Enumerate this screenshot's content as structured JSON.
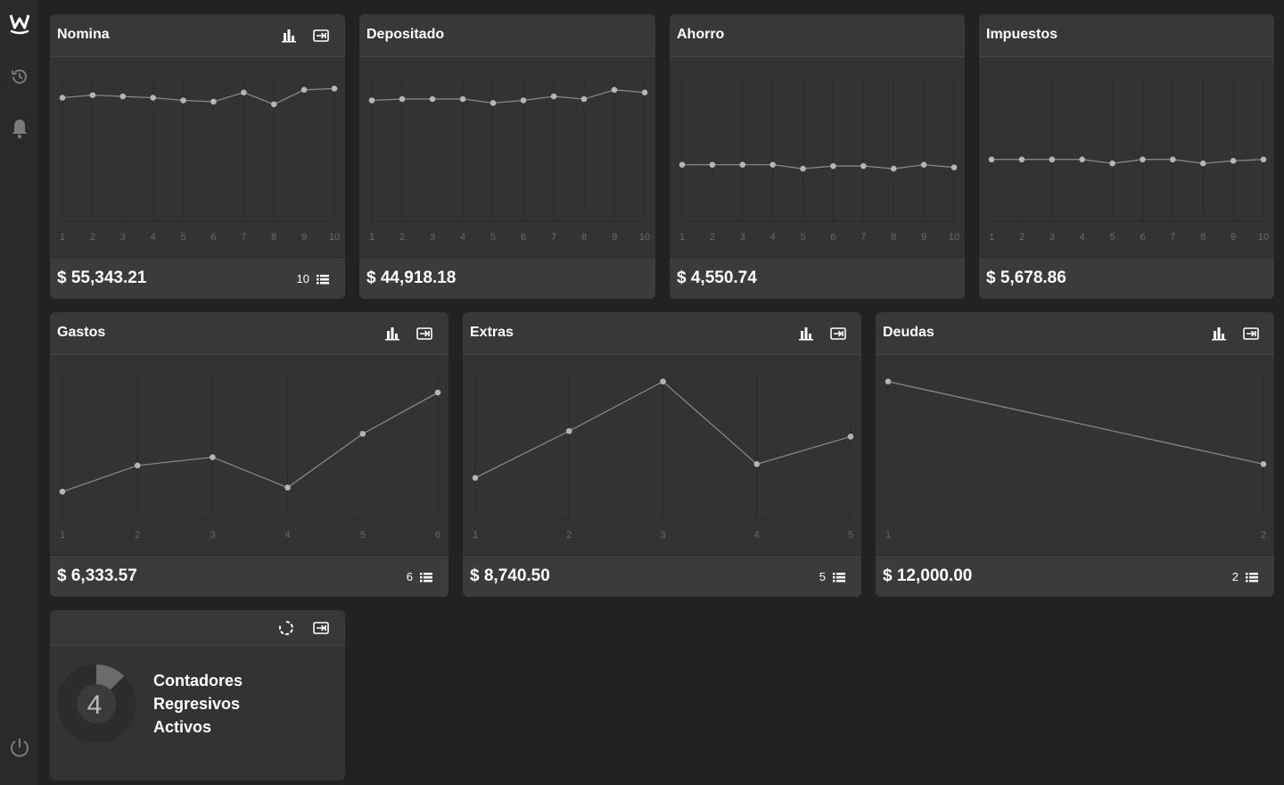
{
  "sidebar": {
    "logo_icon": "w-logo-icon",
    "items": [
      {
        "name": "history-icon"
      },
      {
        "name": "bell-icon"
      }
    ],
    "power_icon": "power-icon"
  },
  "cards": [
    {
      "id": "nomina",
      "title": "Nomina",
      "amount": "$ 55,343.21",
      "count": "10",
      "icons": [
        "bar-chart-icon",
        "export-icon"
      ],
      "list_icon": "list-icon"
    },
    {
      "id": "depositado",
      "title": "Depositado",
      "amount": "$ 44,918.18",
      "count": "",
      "icons": [],
      "list_icon": ""
    },
    {
      "id": "ahorro",
      "title": "Ahorro",
      "amount": "$ 4,550.74",
      "count": "",
      "icons": [],
      "list_icon": ""
    },
    {
      "id": "impuestos",
      "title": "Impuestos",
      "amount": "$ 5,678.86",
      "count": "",
      "icons": [],
      "list_icon": ""
    },
    {
      "id": "gastos",
      "title": "Gastos",
      "amount": "$ 6,333.57",
      "count": "6",
      "icons": [
        "bar-chart-icon",
        "export-icon"
      ],
      "list_icon": "list-icon"
    },
    {
      "id": "extras",
      "title": "Extras",
      "amount": "$ 8,740.50",
      "count": "5",
      "icons": [
        "bar-chart-icon",
        "export-icon"
      ],
      "list_icon": "list-icon"
    },
    {
      "id": "deudas",
      "title": "Deudas",
      "amount": "$ 12,000.00",
      "count": "2",
      "icons": [
        "bar-chart-icon",
        "export-icon"
      ],
      "list_icon": "list-icon"
    }
  ],
  "countdown": {
    "number": "4",
    "line1": "Contadores",
    "line2": "Regresivos",
    "line3": "Activos",
    "fraction": 0.125,
    "icons": [
      "refresh-icon",
      "export-icon"
    ]
  },
  "chart_data": [
    {
      "type": "line",
      "chart": "nomina",
      "x": [
        1,
        2,
        3,
        4,
        5,
        6,
        7,
        8,
        9,
        10
      ],
      "values": [
        0.94,
        0.96,
        0.95,
        0.94,
        0.92,
        0.91,
        0.98,
        0.89,
        1.0,
        1.01
      ],
      "ylim": [
        0,
        1.1
      ]
    },
    {
      "type": "line",
      "chart": "depositado",
      "x": [
        1,
        2,
        3,
        4,
        5,
        6,
        7,
        8,
        9,
        10
      ],
      "values": [
        0.92,
        0.93,
        0.93,
        0.93,
        0.9,
        0.92,
        0.95,
        0.93,
        1.0,
        0.98
      ],
      "ylim": [
        0,
        1.1
      ]
    },
    {
      "type": "line",
      "chart": "ahorro",
      "x": [
        1,
        2,
        3,
        4,
        5,
        6,
        7,
        8,
        9,
        10
      ],
      "values": [
        0.43,
        0.43,
        0.43,
        0.43,
        0.4,
        0.42,
        0.42,
        0.4,
        0.43,
        0.41
      ],
      "ylim": [
        0,
        1.1
      ]
    },
    {
      "type": "line",
      "chart": "impuestos",
      "x": [
        1,
        2,
        3,
        4,
        5,
        6,
        7,
        8,
        9,
        10
      ],
      "values": [
        0.47,
        0.47,
        0.47,
        0.47,
        0.44,
        0.47,
        0.47,
        0.44,
        0.46,
        0.47
      ],
      "ylim": [
        0,
        1.1
      ]
    },
    {
      "type": "line",
      "chart": "gastos",
      "x": [
        1,
        2,
        3,
        4,
        5,
        6
      ],
      "values": [
        0.2,
        0.39,
        0.45,
        0.23,
        0.62,
        0.92
      ],
      "ylim": [
        0,
        1.05
      ]
    },
    {
      "type": "line",
      "chart": "extras",
      "x": [
        1,
        2,
        3,
        4,
        5
      ],
      "values": [
        0.3,
        0.64,
        1.0,
        0.4,
        0.6
      ],
      "ylim": [
        0,
        1.05
      ]
    },
    {
      "type": "line",
      "chart": "deudas",
      "x": [
        1,
        2
      ],
      "values": [
        1.0,
        0.4
      ],
      "ylim": [
        0,
        1.05
      ]
    }
  ]
}
